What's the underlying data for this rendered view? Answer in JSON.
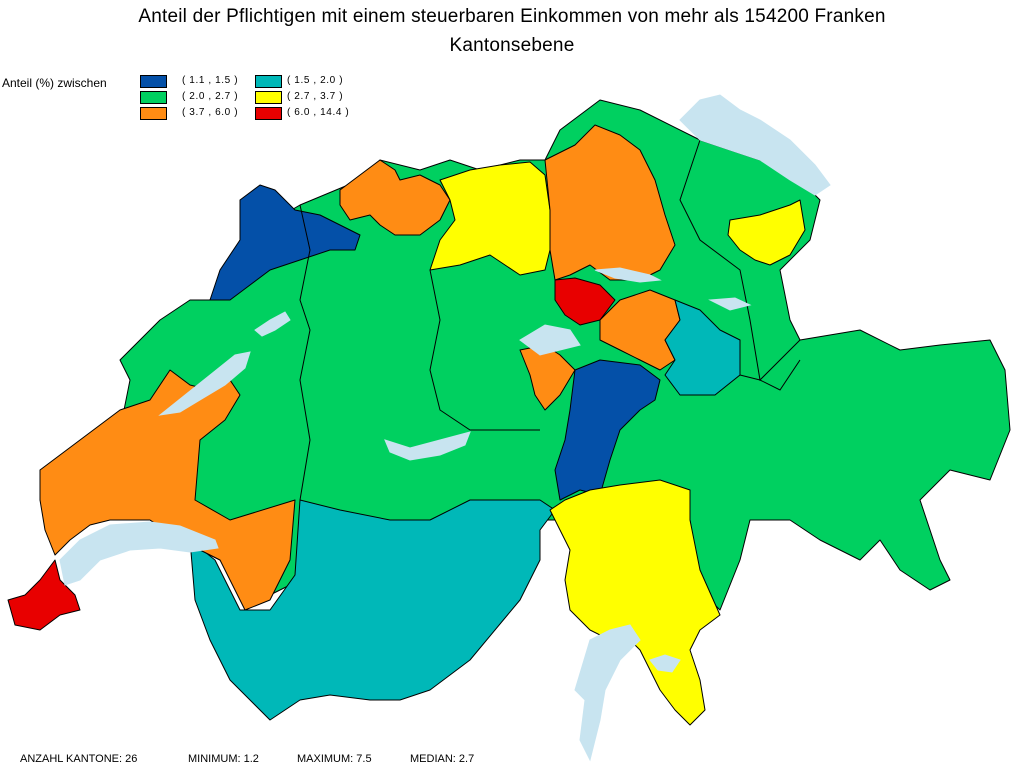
{
  "title": {
    "line1": "Anteil der Pflichtigen mit einem steuerbaren Einkommen von mehr als 154200 Franken",
    "line2": "Kantonsebene"
  },
  "legend": {
    "label": "Anteil (%) zwischen",
    "classes": [
      {
        "range": "( 1.1 , 1.5 )",
        "color": "#0450a8"
      },
      {
        "range": "( 1.5 , 2.0 )",
        "color": "#00b8b8"
      },
      {
        "range": "( 2.0 , 2.7 )",
        "color": "#00d060"
      },
      {
        "range": "( 2.7 , 3.7 )",
        "color": "#ffff00"
      },
      {
        "range": "( 3.7 , 6.0 )",
        "color": "#ff8c14"
      },
      {
        "range": "( 6.0 , 14.4 )",
        "color": "#e80000"
      }
    ]
  },
  "stats": {
    "count": "ANZAHL KANTONE: 26",
    "minimum": "MINIMUM: 1.2",
    "maximum": "MAXIMUM: 7.5",
    "median": "MEDIAN: 2.7"
  },
  "colors": {
    "lake": "#c8e4f0",
    "border": "#000000"
  }
}
